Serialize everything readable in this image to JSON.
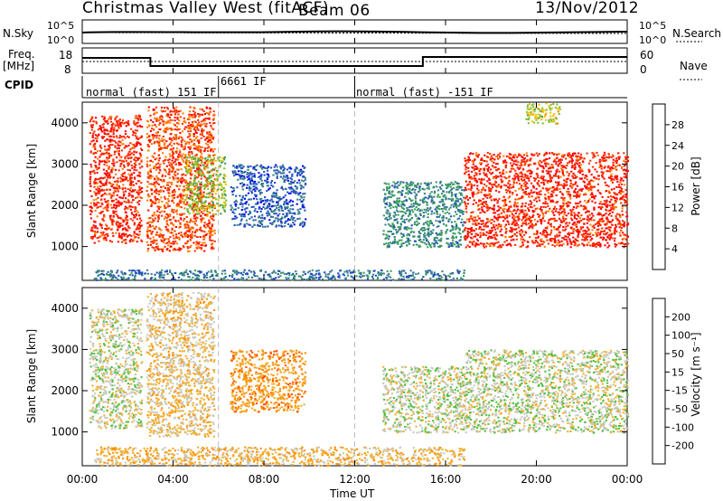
{
  "header": {
    "title": "Christmas Valley West (fitACF)",
    "beam": "Beam 06",
    "date": "13/Nov/2012"
  },
  "noise_panel": {
    "left_label": "N.Sky",
    "right_label": "N.Search",
    "tick_top": "10^5",
    "tick_bottom": "10^0"
  },
  "freq_panel": {
    "left_label_1": "Freq.",
    "left_label_2": "[MHz]",
    "left_tick_top": "18",
    "left_tick_bottom": "8",
    "right_label": "Nave",
    "right_tick_top": "60",
    "right_tick_bottom": "0",
    "cpid_label": "CPID"
  },
  "cpid_segments": [
    {
      "label": "normal (fast) 151 IF",
      "start_hour": 0
    },
    {
      "label": "6661 IF",
      "start_hour": 6
    },
    {
      "label": "normal (fast) -151 IF",
      "start_hour": 12
    }
  ],
  "colorbars": {
    "power": {
      "label": "Power [dB]",
      "ticks": [
        "28",
        "24",
        "20",
        "16",
        "12",
        "8",
        "4"
      ]
    },
    "velocity": {
      "label": "Velocity [m s⁻¹]",
      "ticks": [
        "200",
        "100",
        "50",
        "15",
        "-15",
        "-50",
        "-100",
        "-200"
      ]
    }
  },
  "chart_data": [
    {
      "type": "heatmap",
      "name": "power",
      "ylabel": "Slant Range [km]",
      "yticks": [
        "4000",
        "3000",
        "2000",
        "1000"
      ],
      "ylim": [
        180,
        4500
      ],
      "xlim_hours": [
        0,
        24
      ],
      "colorscale": [
        "#0000ff",
        "#2050c0",
        "#3a7f8a",
        "#3aa05a",
        "#80c030",
        "#f0c000",
        "#ff8000",
        "#ff3000",
        "#ff0000"
      ],
      "regions": [
        {
          "t0": 0.3,
          "t1": 2.6,
          "r0": 1100,
          "r1": 4200,
          "power": 28
        },
        {
          "t0": 2.8,
          "t1": 5.8,
          "r0": 900,
          "r1": 4400,
          "power": 26
        },
        {
          "t0": 4.5,
          "t1": 6.3,
          "r0": 1800,
          "r1": 3200,
          "power": 16
        },
        {
          "t0": 6.5,
          "t1": 9.8,
          "r0": 1500,
          "r1": 3000,
          "power": 6
        },
        {
          "t0": 0.5,
          "t1": 16.8,
          "r0": 200,
          "r1": 450,
          "power": 8
        },
        {
          "t0": 13.2,
          "t1": 16.8,
          "r0": 1000,
          "r1": 2600,
          "power": 10
        },
        {
          "t0": 16.8,
          "t1": 24.0,
          "r0": 1000,
          "r1": 3300,
          "power": 28
        },
        {
          "t0": 19.5,
          "t1": 21.0,
          "r0": 4000,
          "r1": 4500,
          "power": 18
        }
      ]
    },
    {
      "type": "heatmap",
      "name": "velocity",
      "ylabel": "Slant Range [km]",
      "yticks": [
        "4000",
        "3000",
        "2000",
        "1000"
      ],
      "ylim": [
        180,
        4500
      ],
      "xlim_hours": [
        0,
        24
      ],
      "xticks": [
        "00:00",
        "04:00",
        "08:00",
        "12:00",
        "16:00",
        "20:00",
        "00:00"
      ],
      "xlabel": "Time UT",
      "colorscale": [
        "#ff0000",
        "#ff5000",
        "#ff9000",
        "#f0b030",
        "#c8c8c0",
        "#50c040",
        "#30a050",
        "#2060a0",
        "#0000ff"
      ],
      "regions": [
        {
          "t0": 0.3,
          "t1": 2.6,
          "r0": 1100,
          "r1": 4000,
          "velocity": 0
        },
        {
          "t0": 2.8,
          "t1": 5.8,
          "r0": 900,
          "r1": 4400,
          "velocity": -40
        },
        {
          "t0": 6.5,
          "t1": 9.8,
          "r0": 1500,
          "r1": 3000,
          "velocity": -100
        },
        {
          "t0": 0.5,
          "t1": 16.8,
          "r0": 200,
          "r1": 650,
          "velocity": -60
        },
        {
          "t0": 13.2,
          "t1": 16.8,
          "r0": 1000,
          "r1": 2600,
          "velocity": 0
        },
        {
          "t0": 16.8,
          "t1": 24.0,
          "r0": 1000,
          "r1": 3000,
          "velocity": 0
        }
      ]
    }
  ]
}
